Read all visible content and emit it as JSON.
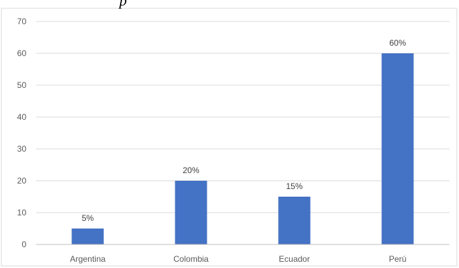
{
  "chart_data": {
    "type": "bar",
    "categories": [
      "Argentina",
      "Colombia",
      "Ecuador",
      "Perú"
    ],
    "values": [
      5,
      20,
      15,
      60
    ],
    "data_labels": [
      "5%",
      "20%",
      "15%",
      "60%"
    ],
    "ylim": [
      0,
      70
    ],
    "yticks": [
      0,
      10,
      20,
      30,
      40,
      50,
      60,
      70
    ],
    "grid": true,
    "legend": "none",
    "title_fragment": "p",
    "colors": {
      "bar": "#4472C4",
      "grid": "#D9D9D9",
      "axis": "#BFBFBF",
      "text": "#595959"
    }
  }
}
